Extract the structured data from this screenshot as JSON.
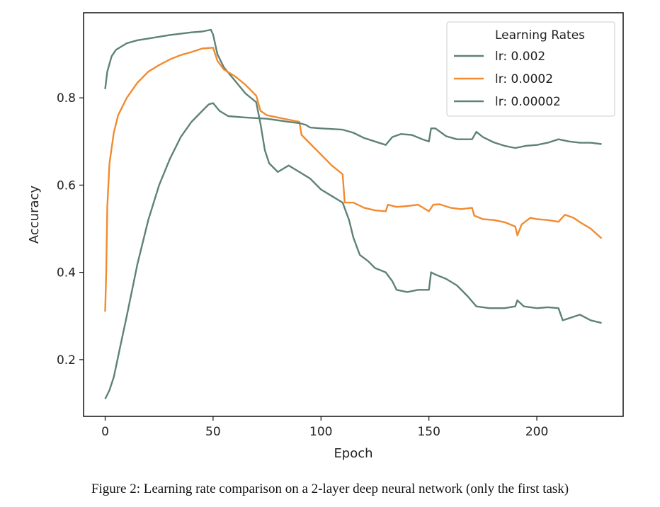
{
  "caption": "Figure 2: Learning rate comparison on a 2-layer deep neural network (only the first task)",
  "chart_data": {
    "type": "line",
    "xlabel": "Epoch",
    "ylabel": "Accuracy",
    "xlim": [
      -10,
      240
    ],
    "ylim": [
      0.07,
      0.995
    ],
    "xticks": [
      0,
      50,
      100,
      150,
      200
    ],
    "yticks": [
      0.2,
      0.4,
      0.6,
      0.8
    ],
    "grid": false,
    "legend": {
      "title": "Learning Rates",
      "placement": "top-right"
    },
    "series": [
      {
        "name": "lr: 0.002",
        "color": "#5e8276",
        "points": [
          [
            0,
            0.82
          ],
          [
            1,
            0.86
          ],
          [
            3,
            0.895
          ],
          [
            5,
            0.91
          ],
          [
            10,
            0.925
          ],
          [
            15,
            0.932
          ],
          [
            20,
            0.936
          ],
          [
            25,
            0.94
          ],
          [
            30,
            0.944
          ],
          [
            35,
            0.947
          ],
          [
            40,
            0.95
          ],
          [
            45,
            0.952
          ],
          [
            49,
            0.956
          ],
          [
            50,
            0.945
          ],
          [
            52,
            0.9
          ],
          [
            55,
            0.87
          ],
          [
            60,
            0.84
          ],
          [
            65,
            0.81
          ],
          [
            70,
            0.79
          ],
          [
            72,
            0.74
          ],
          [
            74,
            0.68
          ],
          [
            76,
            0.65
          ],
          [
            80,
            0.63
          ],
          [
            85,
            0.645
          ],
          [
            90,
            0.63
          ],
          [
            95,
            0.615
          ],
          [
            100,
            0.59
          ],
          [
            105,
            0.575
          ],
          [
            110,
            0.56
          ],
          [
            113,
            0.52
          ],
          [
            115,
            0.48
          ],
          [
            118,
            0.44
          ],
          [
            122,
            0.425
          ],
          [
            125,
            0.41
          ],
          [
            130,
            0.4
          ],
          [
            133,
            0.38
          ],
          [
            135,
            0.36
          ],
          [
            140,
            0.355
          ],
          [
            145,
            0.36
          ],
          [
            150,
            0.36
          ],
          [
            151,
            0.4
          ],
          [
            153,
            0.395
          ],
          [
            158,
            0.385
          ],
          [
            163,
            0.37
          ],
          [
            168,
            0.345
          ],
          [
            172,
            0.322
          ],
          [
            178,
            0.318
          ],
          [
            185,
            0.318
          ],
          [
            190,
            0.322
          ],
          [
            191,
            0.336
          ],
          [
            194,
            0.322
          ],
          [
            200,
            0.318
          ],
          [
            205,
            0.32
          ],
          [
            210,
            0.318
          ],
          [
            212,
            0.29
          ],
          [
            215,
            0.295
          ],
          [
            220,
            0.303
          ],
          [
            225,
            0.29
          ],
          [
            230,
            0.284
          ]
        ]
      },
      {
        "name": "lr: 0.0002",
        "color": "#f28b30",
        "points": [
          [
            0,
            0.31
          ],
          [
            0.5,
            0.4
          ],
          [
            1,
            0.55
          ],
          [
            2,
            0.65
          ],
          [
            4,
            0.72
          ],
          [
            6,
            0.76
          ],
          [
            10,
            0.8
          ],
          [
            15,
            0.835
          ],
          [
            20,
            0.86
          ],
          [
            25,
            0.875
          ],
          [
            30,
            0.888
          ],
          [
            35,
            0.898
          ],
          [
            40,
            0.905
          ],
          [
            45,
            0.913
          ],
          [
            50,
            0.915
          ],
          [
            52,
            0.885
          ],
          [
            55,
            0.865
          ],
          [
            60,
            0.85
          ],
          [
            65,
            0.83
          ],
          [
            70,
            0.805
          ],
          [
            72,
            0.77
          ],
          [
            75,
            0.76
          ],
          [
            80,
            0.755
          ],
          [
            85,
            0.75
          ],
          [
            90,
            0.745
          ],
          [
            91,
            0.715
          ],
          [
            95,
            0.695
          ],
          [
            100,
            0.67
          ],
          [
            105,
            0.645
          ],
          [
            110,
            0.625
          ],
          [
            111,
            0.56
          ],
          [
            115,
            0.56
          ],
          [
            120,
            0.548
          ],
          [
            125,
            0.542
          ],
          [
            130,
            0.54
          ],
          [
            131,
            0.555
          ],
          [
            135,
            0.55
          ],
          [
            140,
            0.552
          ],
          [
            145,
            0.555
          ],
          [
            150,
            0.54
          ],
          [
            152,
            0.555
          ],
          [
            155,
            0.556
          ],
          [
            160,
            0.548
          ],
          [
            165,
            0.545
          ],
          [
            170,
            0.548
          ],
          [
            171,
            0.53
          ],
          [
            175,
            0.522
          ],
          [
            180,
            0.52
          ],
          [
            185,
            0.515
          ],
          [
            190,
            0.505
          ],
          [
            191,
            0.485
          ],
          [
            193,
            0.51
          ],
          [
            197,
            0.525
          ],
          [
            200,
            0.522
          ],
          [
            205,
            0.52
          ],
          [
            210,
            0.516
          ],
          [
            213,
            0.532
          ],
          [
            217,
            0.525
          ],
          [
            220,
            0.515
          ],
          [
            225,
            0.5
          ],
          [
            230,
            0.478
          ]
        ]
      },
      {
        "name": "lr: 0.00002",
        "color": "#5e8276",
        "points": [
          [
            0,
            0.11
          ],
          [
            2,
            0.13
          ],
          [
            4,
            0.16
          ],
          [
            7,
            0.23
          ],
          [
            10,
            0.3
          ],
          [
            15,
            0.42
          ],
          [
            20,
            0.52
          ],
          [
            25,
            0.6
          ],
          [
            30,
            0.66
          ],
          [
            35,
            0.71
          ],
          [
            40,
            0.745
          ],
          [
            45,
            0.77
          ],
          [
            48,
            0.785
          ],
          [
            50,
            0.788
          ],
          [
            53,
            0.77
          ],
          [
            57,
            0.758
          ],
          [
            65,
            0.755
          ],
          [
            75,
            0.752
          ],
          [
            85,
            0.745
          ],
          [
            90,
            0.742
          ],
          [
            93,
            0.738
          ],
          [
            95,
            0.732
          ],
          [
            100,
            0.73
          ],
          [
            110,
            0.727
          ],
          [
            115,
            0.72
          ],
          [
            120,
            0.708
          ],
          [
            125,
            0.7
          ],
          [
            130,
            0.692
          ],
          [
            133,
            0.71
          ],
          [
            137,
            0.717
          ],
          [
            142,
            0.715
          ],
          [
            147,
            0.705
          ],
          [
            150,
            0.7
          ],
          [
            151,
            0.73
          ],
          [
            153,
            0.73
          ],
          [
            158,
            0.712
          ],
          [
            163,
            0.705
          ],
          [
            170,
            0.705
          ],
          [
            172,
            0.722
          ],
          [
            175,
            0.71
          ],
          [
            180,
            0.698
          ],
          [
            185,
            0.69
          ],
          [
            190,
            0.685
          ],
          [
            195,
            0.69
          ],
          [
            200,
            0.692
          ],
          [
            205,
            0.697
          ],
          [
            210,
            0.705
          ],
          [
            215,
            0.7
          ],
          [
            220,
            0.697
          ],
          [
            225,
            0.697
          ],
          [
            230,
            0.694
          ]
        ]
      }
    ]
  }
}
